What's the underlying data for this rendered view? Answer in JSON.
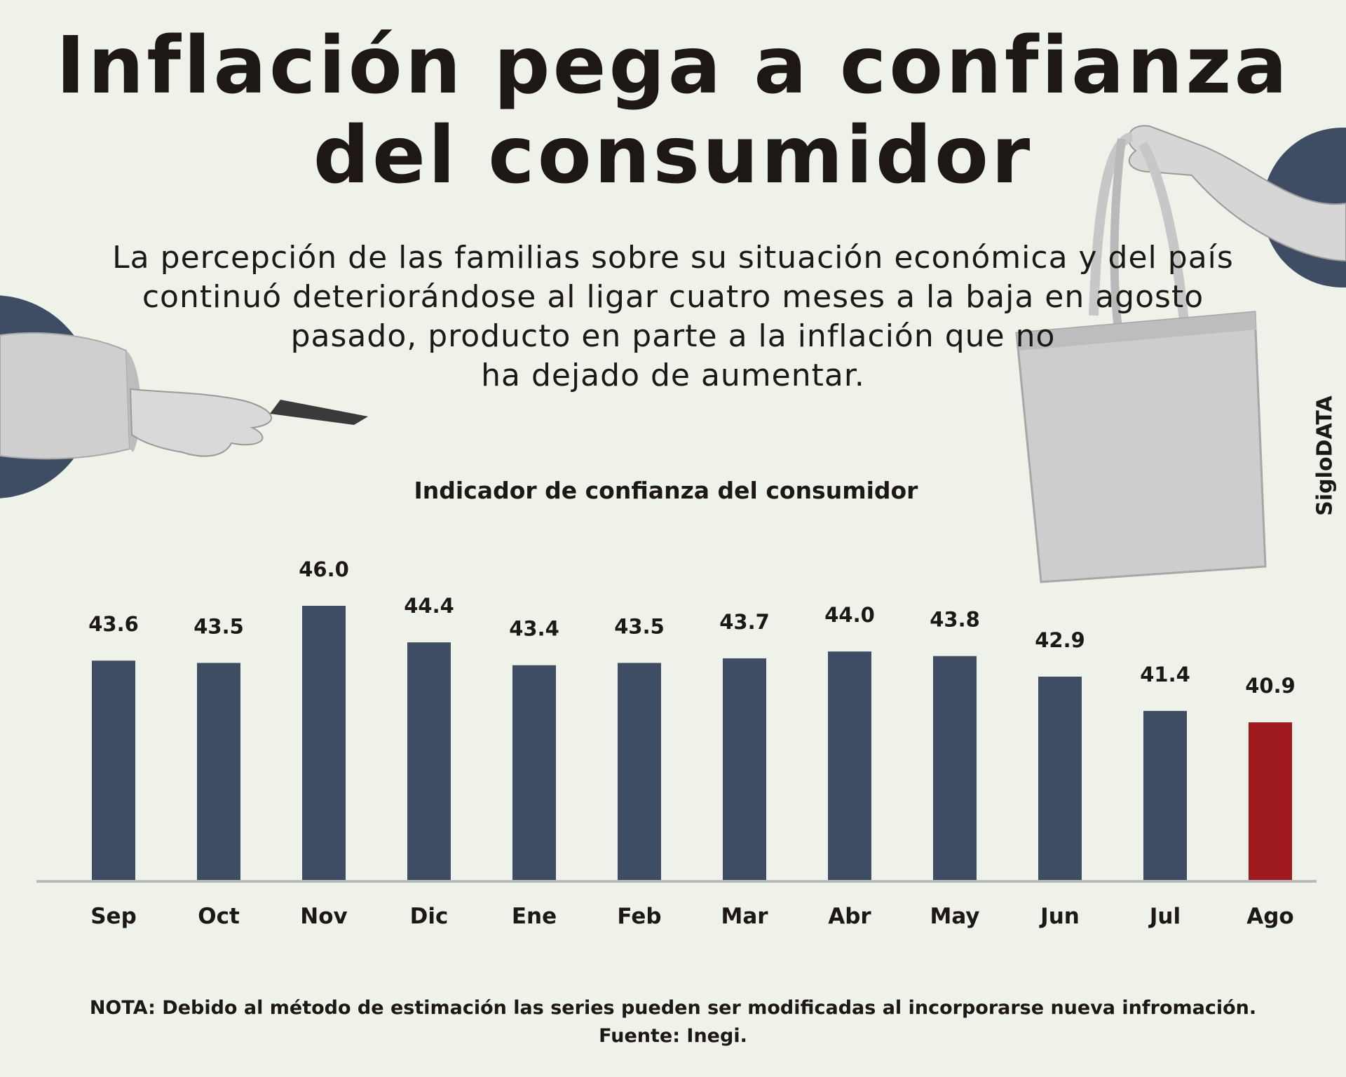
{
  "title": {
    "line1": "Inflación pega a confianza",
    "line2": "del consumidor"
  },
  "subtitle": {
    "line1": "La percepción de las familias sobre su situación económica y del país",
    "line2": "continuó deteriorándose al ligar cuatro meses a la baja en agosto",
    "line3": "pasado, producto en parte a la inflación que no",
    "line4": "ha dejado de aumentar."
  },
  "side_label": "SigloDATA",
  "colors": {
    "background": "#eef2e8",
    "bar": "#3e4d63",
    "highlight": "#9e1a1f",
    "baseline": "#b9bbbd"
  },
  "chart_data": {
    "type": "bar",
    "title": "Indicador de confianza del consumidor",
    "categories": [
      "Sep",
      "Oct",
      "Nov",
      "Dic",
      "Ene",
      "Feb",
      "Mar",
      "Abr",
      "May",
      "Jun",
      "Jul",
      "Ago"
    ],
    "values": [
      43.6,
      43.5,
      46.0,
      44.4,
      43.4,
      43.5,
      43.7,
      44.0,
      43.8,
      42.9,
      41.4,
      40.9
    ],
    "value_labels": [
      "43.6",
      "43.5",
      "46.0",
      "44.4",
      "43.4",
      "43.5",
      "43.7",
      "44.0",
      "43.8",
      "42.9",
      "41.4",
      "40.9"
    ],
    "highlight_category": "Ago",
    "xlabel": "",
    "ylabel": "",
    "ylim": [
      34,
      46
    ],
    "grid": false,
    "legend": "none"
  },
  "footer": {
    "note": "NOTA: Debido al método de estimación las series pueden ser modificadas al incorporarse nueva infromación.",
    "source": "Fuente: Inegi."
  }
}
